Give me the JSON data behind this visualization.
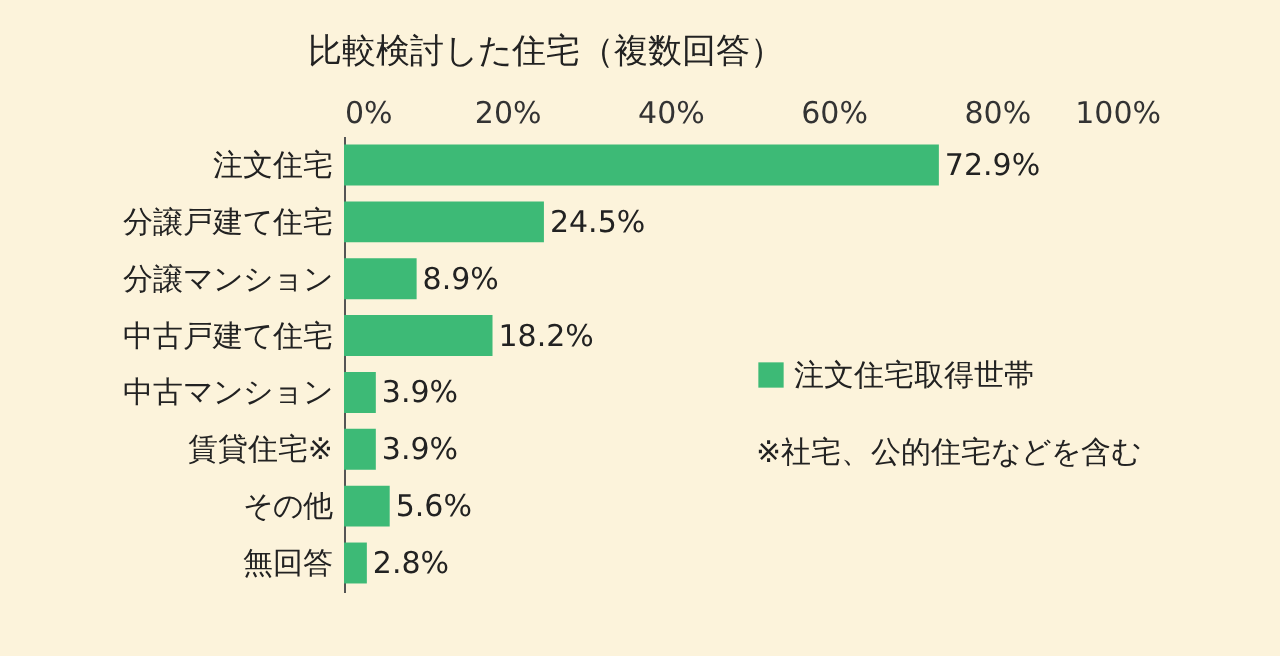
{
  "chart_data": {
    "type": "bar",
    "orientation": "horizontal",
    "title": "比較検討した住宅（複数回答）",
    "categories": [
      "注文住宅",
      "分譲戸建て住宅",
      "分譲マンション",
      "中古戸建て住宅",
      "中古マンション",
      "賃貸住宅※",
      "その他",
      "無回答"
    ],
    "series": [
      {
        "name": "注文住宅取得世帯",
        "color": "#3dba76",
        "values": [
          72.9,
          24.5,
          8.9,
          18.2,
          3.9,
          3.9,
          5.6,
          2.8
        ],
        "value_labels": [
          "72.9%",
          "24.5%",
          "8.9%",
          "18.2%",
          "3.9%",
          "3.9%",
          "5.6%",
          "2.8%"
        ]
      }
    ],
    "xlim": [
      0,
      100
    ],
    "xticks": [
      {
        "value": 0,
        "label": "0%"
      },
      {
        "value": 20,
        "label": "20%"
      },
      {
        "value": 40,
        "label": "40%"
      },
      {
        "value": 60,
        "label": "60%"
      },
      {
        "value": 80,
        "label": "80%"
      },
      {
        "value": 100,
        "label": "100%"
      }
    ],
    "legend": "right",
    "grid": false,
    "annotations": [
      "※社宅、公的住宅などを含む"
    ]
  }
}
